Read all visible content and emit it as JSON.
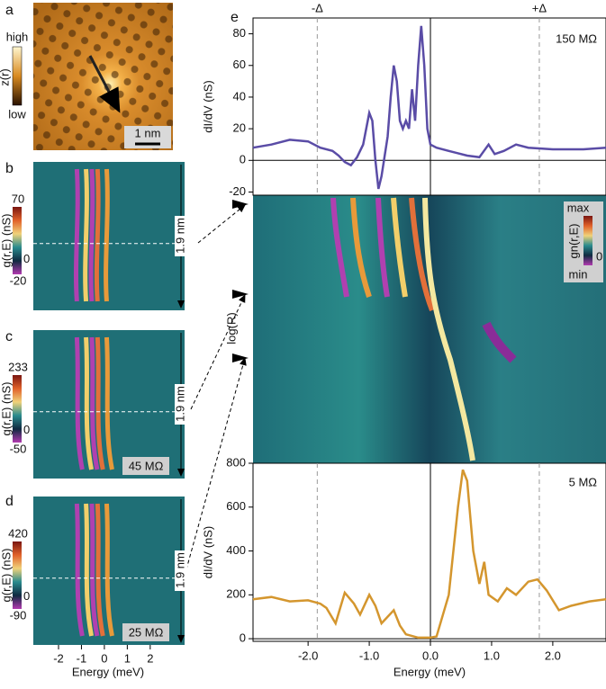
{
  "figure": {
    "panel_labels": [
      "a",
      "b",
      "c",
      "d",
      "e"
    ],
    "topo": {
      "colorbar_high": "high",
      "colorbar_low": "low",
      "colorbar_label": "z(r)",
      "scale_bar": "1 nm"
    },
    "maps": [
      {
        "colorbar_ticks": [
          70,
          0,
          -20
        ],
        "colorbar_label": "g(r,E) (nS)",
        "distance": "1.9 nm"
      },
      {
        "colorbar_ticks": [
          233,
          0,
          -50
        ],
        "colorbar_label": "g(r,E) (nS)",
        "distance": "1.9 nm",
        "resistance": "45 MΩ"
      },
      {
        "colorbar_ticks": [
          420,
          0,
          -90
        ],
        "colorbar_label": "g(r,E) (nS)",
        "distance": "1.9 nm",
        "resistance": "25 MΩ"
      }
    ],
    "map_xlabel": "Energy (meV)",
    "map_xticks": [
      -2,
      -1,
      0,
      1,
      2
    ],
    "map_xlim": [
      -3.1,
      3.5
    ],
    "heatmap": {
      "ylabel": "log(R)",
      "colorbar_max": "max",
      "colorbar_min": "min",
      "colorbar_zero": "0",
      "colorbar_label": "gn(r,E)"
    }
  },
  "chart_data": [
    {
      "type": "line",
      "annotation": "150 MΩ",
      "ylabel": "dI/dV (nS)",
      "color": "#5a4ca6",
      "delta_lines": [
        {
          "value": -1.85,
          "label": "-Δ"
        },
        {
          "value": 1.78,
          "label": "+Δ"
        }
      ],
      "xlim": [
        -2.9,
        2.87
      ],
      "ylim": [
        -22,
        90
      ],
      "yticks": [
        -20,
        0,
        20,
        40,
        60,
        80
      ],
      "x": [
        -2.9,
        -2.6,
        -2.3,
        -2.0,
        -1.8,
        -1.6,
        -1.5,
        -1.4,
        -1.3,
        -1.2,
        -1.1,
        -1.0,
        -0.95,
        -0.9,
        -0.85,
        -0.8,
        -0.7,
        -0.65,
        -0.6,
        -0.55,
        -0.5,
        -0.45,
        -0.4,
        -0.35,
        -0.3,
        -0.25,
        -0.2,
        -0.15,
        -0.1,
        -0.05,
        0,
        0.1,
        0.3,
        0.6,
        0.8,
        0.95,
        1.05,
        1.2,
        1.4,
        1.6,
        2.0,
        2.5,
        2.87
      ],
      "values": [
        8,
        10,
        13,
        12,
        8,
        6,
        3,
        -1,
        -3,
        2,
        10,
        30,
        25,
        0,
        -18,
        -10,
        15,
        40,
        60,
        50,
        25,
        20,
        25,
        20,
        45,
        25,
        60,
        85,
        60,
        20,
        10,
        8,
        6,
        3,
        2,
        10,
        4,
        6,
        10,
        8,
        7,
        7,
        8
      ]
    },
    {
      "type": "line",
      "annotation": "5 MΩ",
      "ylabel": "dI/dV (nS)",
      "xlabel": "Energy (meV)",
      "color": "#d4962e",
      "xlim": [
        -2.9,
        2.87
      ],
      "ylim": [
        -12,
        800
      ],
      "yticks": [
        0,
        200,
        400,
        600,
        800
      ],
      "xticks": [
        {
          "value": -2,
          "label": "-2.0"
        },
        {
          "value": -1,
          "label": "-1.0"
        },
        {
          "value": 0,
          "label": "0.0"
        },
        {
          "value": 1,
          "label": "1.0"
        },
        {
          "value": 2,
          "label": "2.0"
        }
      ],
      "x": [
        -2.9,
        -2.6,
        -2.3,
        -2.0,
        -1.8,
        -1.7,
        -1.55,
        -1.4,
        -1.25,
        -1.15,
        -1.0,
        -0.9,
        -0.8,
        -0.6,
        -0.5,
        -0.4,
        -0.2,
        0,
        0.1,
        0.3,
        0.45,
        0.53,
        0.6,
        0.7,
        0.8,
        0.88,
        0.95,
        1.1,
        1.25,
        1.4,
        1.6,
        1.75,
        1.9,
        2.1,
        2.3,
        2.6,
        2.87
      ],
      "values": [
        180,
        190,
        170,
        175,
        160,
        140,
        70,
        210,
        160,
        110,
        200,
        150,
        70,
        130,
        60,
        20,
        5,
        5,
        10,
        200,
        600,
        770,
        720,
        400,
        250,
        350,
        200,
        170,
        230,
        200,
        260,
        270,
        220,
        130,
        150,
        170,
        180
      ]
    }
  ]
}
